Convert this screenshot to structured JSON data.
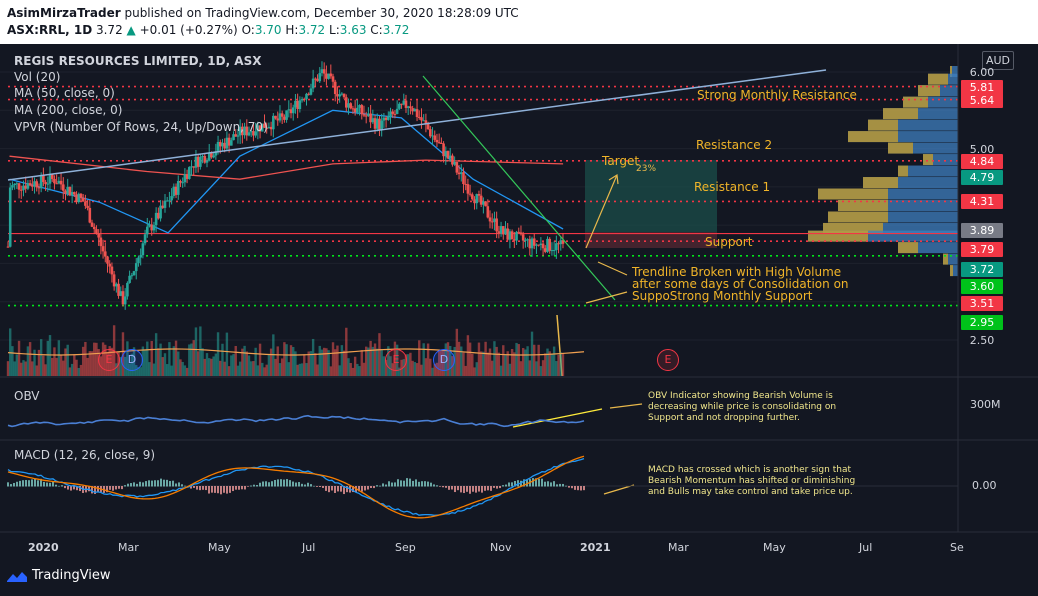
{
  "header": {
    "publisher": "AsimMirzaTrader",
    "published_text": "published on TradingView.com, December 30, 2020 18:28:09 UTC",
    "symbol": "ASX:RRL, 1D",
    "last": "3.72",
    "change": "+0.01 (+0.27%)",
    "o_label": "O:",
    "o": "3.70",
    "h_label": "H:",
    "h": "3.72",
    "l_label": "L:",
    "l": "3.63",
    "c_label": "C:",
    "c": "3.72"
  },
  "legends": {
    "title": "REGIS RESOURCES LIMITED, 1D, ASX",
    "vol": "Vol (20)",
    "ma50": "MA (50, close, 0)",
    "ma200": "MA (200, close, 0)",
    "vpvr": "VPVR (Number Of Rows, 24, Up/Down, 70)",
    "obv": "OBV",
    "macd": "MACD (12, 26, close, 9)"
  },
  "currency": "AUD",
  "price_tags": [
    {
      "text": "6.00",
      "color": "none"
    },
    {
      "text": "5.81",
      "color": "#f23645"
    },
    {
      "text": "5.64",
      "color": "#f23645"
    },
    {
      "text": "5.00",
      "color": "none"
    },
    {
      "text": "4.84",
      "color": "#f23645"
    },
    {
      "text": "4.79",
      "color": "#089981"
    },
    {
      "text": "4.31",
      "color": "#f23645"
    },
    {
      "text": "3.89",
      "color": "#787b86"
    },
    {
      "text": "3.79",
      "color": "#f23645"
    },
    {
      "text": "3.72",
      "color": "#089981"
    },
    {
      "text": "3.60",
      "color": "#00c21a"
    },
    {
      "text": "3.51",
      "color": "#f23645"
    },
    {
      "text": "2.95",
      "color": "#00c21a"
    },
    {
      "text": "2.50",
      "color": "none"
    }
  ],
  "obv_axis": "300M",
  "macd_axis": "0.00",
  "months": [
    "2020",
    "Mar",
    "May",
    "Jul",
    "Sep",
    "Nov",
    "2021",
    "Mar",
    "May",
    "Jul",
    "Se"
  ],
  "annotations": {
    "strong_resistance": "Strong Monthly Resistance",
    "resistance2": "Resistance 2",
    "resistance1": "Resistance 1",
    "support": "Support",
    "target": "Target",
    "target_pct": "23%",
    "breakout_line1": "Trendline Broken with High Volume",
    "breakout_line2": "after some days of Consolidation on",
    "breakout_line3": "SuppoStrong Monthly Support",
    "obv_note_1": "OBV Indicator showing Bearish Volume is",
    "obv_note_2": "decreasing while price is consolidating on",
    "obv_note_3": "Support and not dropping further.",
    "macd_note_1": "MACD has crossed which is another sign that",
    "macd_note_2": "Bearish Momentum has shifted or diminishing",
    "macd_note_3": "and Bulls may take control and take price up."
  },
  "events": {
    "e": "E",
    "d": "D"
  },
  "brand": "TradingView",
  "chart_data": {
    "type": "line",
    "title": "REGIS RESOURCES LIMITED, 1D, ASX",
    "series": [
      {
        "name": "price",
        "x": [
          "2020-01-02",
          "2020-02-01",
          "2020-02-20",
          "2020-03-16",
          "2020-04-01",
          "2020-05-01",
          "2020-06-01",
          "2020-07-01",
          "2020-07-25",
          "2020-08-10",
          "2020-09-01",
          "2020-09-20",
          "2020-10-15",
          "2020-11-01",
          "2020-11-20",
          "2020-12-10",
          "2020-12-30"
        ],
        "values": [
          4.5,
          4.6,
          4.3,
          3.0,
          3.9,
          4.8,
          5.2,
          5.4,
          6.0,
          5.6,
          5.3,
          5.6,
          4.9,
          4.4,
          3.9,
          3.75,
          3.72
        ]
      },
      {
        "name": "MA 50",
        "x": [
          "2020-01-02",
          "2020-03-01",
          "2020-04-15",
          "2020-06-01",
          "2020-08-01",
          "2020-09-15",
          "2020-11-01",
          "2020-12-30"
        ],
        "values": [
          4.6,
          4.3,
          3.9,
          4.9,
          5.5,
          5.4,
          4.6,
          3.95
        ]
      },
      {
        "name": "MA 200",
        "x": [
          "2020-01-02",
          "2020-04-01",
          "2020-06-01",
          "2020-08-01",
          "2020-10-01",
          "2020-12-30"
        ],
        "values": [
          4.9,
          4.7,
          4.6,
          4.8,
          4.85,
          4.8
        ]
      }
    ],
    "levels": [
      5.81,
      5.64,
      4.84,
      4.31,
      3.79,
      3.6,
      2.95
    ],
    "target_pct": 23,
    "ylim": [
      2.5,
      6.1
    ]
  }
}
